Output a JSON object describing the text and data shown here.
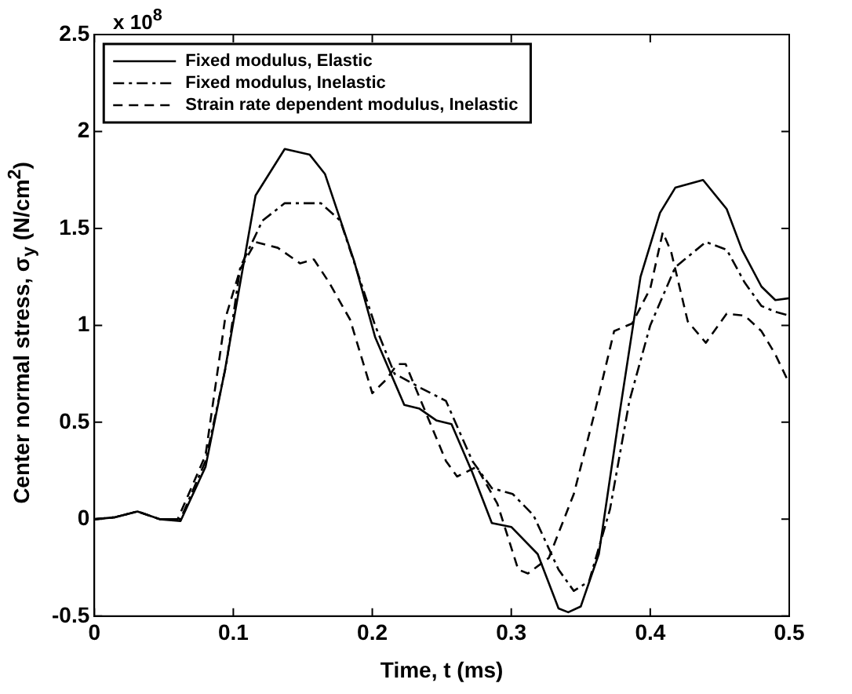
{
  "chart_data": {
    "type": "line",
    "xlabel": "Time, t (ms)",
    "ylabel": "Center normal stress, σ$_{y}$ (N/cm$^{2}$)",
    "annotations": [
      "x 10$^{8}$"
    ],
    "xlim": [
      0,
      0.5
    ],
    "xticks": [
      0,
      0.1,
      0.2,
      0.3,
      0.4,
      0.5
    ],
    "ylim": [
      -0.5,
      2.5
    ],
    "yticks": [
      -0.5,
      0,
      0.5,
      1,
      1.5,
      2,
      2.5
    ],
    "grid": false,
    "legend": "top left",
    "marker": "none",
    "series": [
      {
        "name": "Fixed modulus, Elastic",
        "color": "#000000",
        "line_style": "solid",
        "x": [
          0,
          0.015,
          0.031,
          0.047,
          0.062,
          0.08,
          0.094,
          0.116,
          0.137,
          0.155,
          0.166,
          0.187,
          0.202,
          0.223,
          0.234,
          0.246,
          0.257,
          0.272,
          0.286,
          0.3,
          0.319,
          0.334,
          0.341,
          0.35,
          0.363,
          0.378,
          0.393,
          0.407,
          0.418,
          0.438,
          0.455,
          0.466,
          0.48,
          0.49,
          0.5
        ],
        "values": [
          0,
          0.01,
          0.04,
          0,
          -0.01,
          0.27,
          0.77,
          1.67,
          1.91,
          1.88,
          1.78,
          1.33,
          0.94,
          0.59,
          0.57,
          0.51,
          0.49,
          0.24,
          -0.02,
          -0.04,
          -0.18,
          -0.46,
          -0.48,
          -0.45,
          -0.18,
          0.55,
          1.25,
          1.58,
          1.71,
          1.75,
          1.6,
          1.39,
          1.2,
          1.13,
          1.14
        ]
      },
      {
        "name": "Fixed modulus, Inelastic",
        "color": "#000000",
        "line_style": "dashdot",
        "x": [
          0,
          0.015,
          0.031,
          0.047,
          0.062,
          0.08,
          0.095,
          0.105,
          0.121,
          0.137,
          0.152,
          0.163,
          0.177,
          0.202,
          0.216,
          0.224,
          0.234,
          0.253,
          0.272,
          0.286,
          0.301,
          0.316,
          0.334,
          0.345,
          0.356,
          0.371,
          0.385,
          0.4,
          0.418,
          0.44,
          0.455,
          0.468,
          0.48,
          0.49,
          0.5
        ],
        "values": [
          0,
          0.01,
          0.04,
          0,
          0,
          0.3,
          0.8,
          1.3,
          1.54,
          1.63,
          1.63,
          1.63,
          1.54,
          1,
          0.75,
          0.72,
          0.68,
          0.61,
          0.3,
          0.16,
          0.13,
          0.02,
          -0.26,
          -0.37,
          -0.32,
          0.05,
          0.61,
          1,
          1.3,
          1.43,
          1.39,
          1.22,
          1.1,
          1.07,
          1.05
        ]
      },
      {
        "name": "Strain rate dependent modulus, Inelastic",
        "color": "#000000",
        "line_style": "dashed",
        "x": [
          0,
          0.015,
          0.031,
          0.047,
          0.06,
          0.08,
          0.094,
          0.105,
          0.116,
          0.132,
          0.148,
          0.158,
          0.169,
          0.184,
          0.2,
          0.21,
          0.218,
          0.224,
          0.235,
          0.253,
          0.261,
          0.275,
          0.29,
          0.305,
          0.312,
          0.327,
          0.345,
          0.36,
          0.374,
          0.387,
          0.4,
          0.409,
          0.415,
          0.427,
          0.44,
          0.455,
          0.468,
          0.48,
          0.49,
          0.5
        ],
        "values": [
          0,
          0.01,
          0.04,
          0,
          0,
          0.33,
          1.03,
          1.29,
          1.43,
          1.4,
          1.32,
          1.34,
          1.22,
          1.03,
          0.65,
          0.72,
          0.8,
          0.8,
          0.61,
          0.3,
          0.22,
          0.27,
          0.08,
          -0.26,
          -0.28,
          -0.2,
          0.13,
          0.55,
          0.97,
          1.01,
          1.19,
          1.48,
          1.38,
          1.02,
          0.91,
          1.06,
          1.05,
          0.97,
          0.85,
          0.7
        ]
      }
    ]
  }
}
